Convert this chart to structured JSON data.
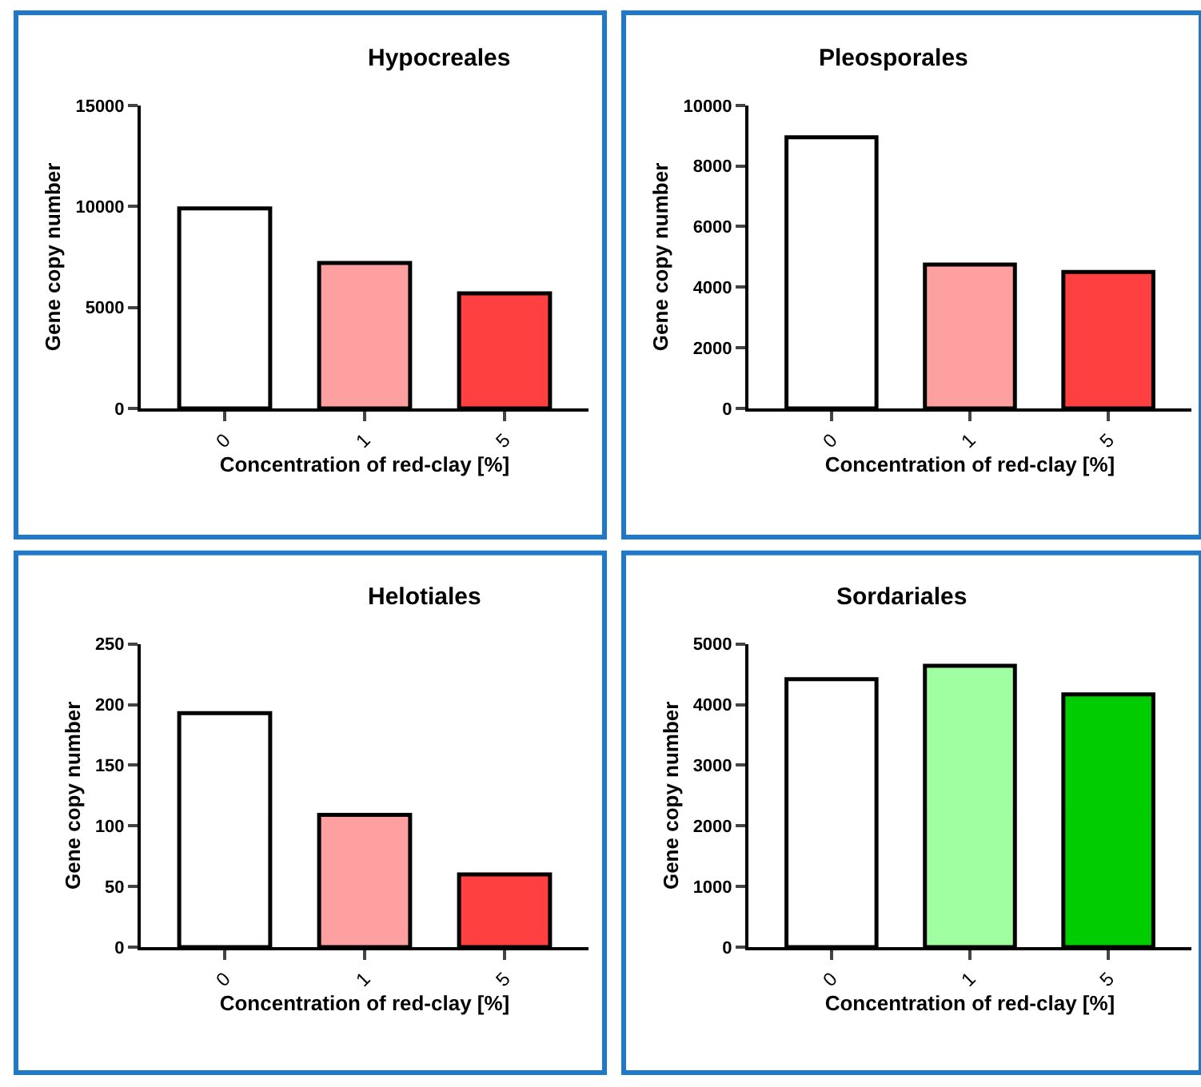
{
  "chart_data": [
    {
      "type": "bar",
      "title": "Hypocreales",
      "xlabel": "Concentration of red-clay [%]",
      "ylabel": "Gene copy number",
      "categories": [
        "0",
        "1",
        "5"
      ],
      "values": [
        9900,
        7200,
        5700
      ],
      "colors": [
        "#ffffff",
        "#ffa0a0",
        "#ff4040"
      ],
      "ylim": [
        0,
        15000
      ],
      "yticks": [
        0,
        5000,
        10000,
        15000
      ]
    },
    {
      "type": "bar",
      "title": "Pleosporales",
      "xlabel": "Concentration of red-clay [%]",
      "ylabel": "Gene copy number",
      "categories": [
        "0",
        "1",
        "5"
      ],
      "values": [
        8950,
        4750,
        4500
      ],
      "colors": [
        "#ffffff",
        "#ffa0a0",
        "#ff4040"
      ],
      "ylim": [
        0,
        10000
      ],
      "yticks": [
        0,
        2000,
        4000,
        6000,
        8000,
        10000
      ]
    },
    {
      "type": "bar",
      "title": "Helotiales",
      "xlabel": "Concentration of red-clay [%]",
      "ylabel": "Gene copy number",
      "categories": [
        "0",
        "1",
        "5"
      ],
      "values": [
        193,
        109,
        60
      ],
      "colors": [
        "#ffffff",
        "#ffa0a0",
        "#ff4040"
      ],
      "ylim": [
        0,
        250
      ],
      "yticks": [
        0,
        50,
        100,
        150,
        200,
        250
      ]
    },
    {
      "type": "bar",
      "title": "Sordariales",
      "xlabel": "Concentration of red-clay [%]",
      "ylabel": "Gene copy number",
      "categories": [
        "0",
        "1",
        "5"
      ],
      "values": [
        4420,
        4640,
        4170
      ],
      "colors": [
        "#ffffff",
        "#a0ffa0",
        "#00cc00"
      ],
      "ylim": [
        0,
        5000
      ],
      "yticks": [
        0,
        1000,
        2000,
        3000,
        4000,
        5000
      ]
    }
  ]
}
